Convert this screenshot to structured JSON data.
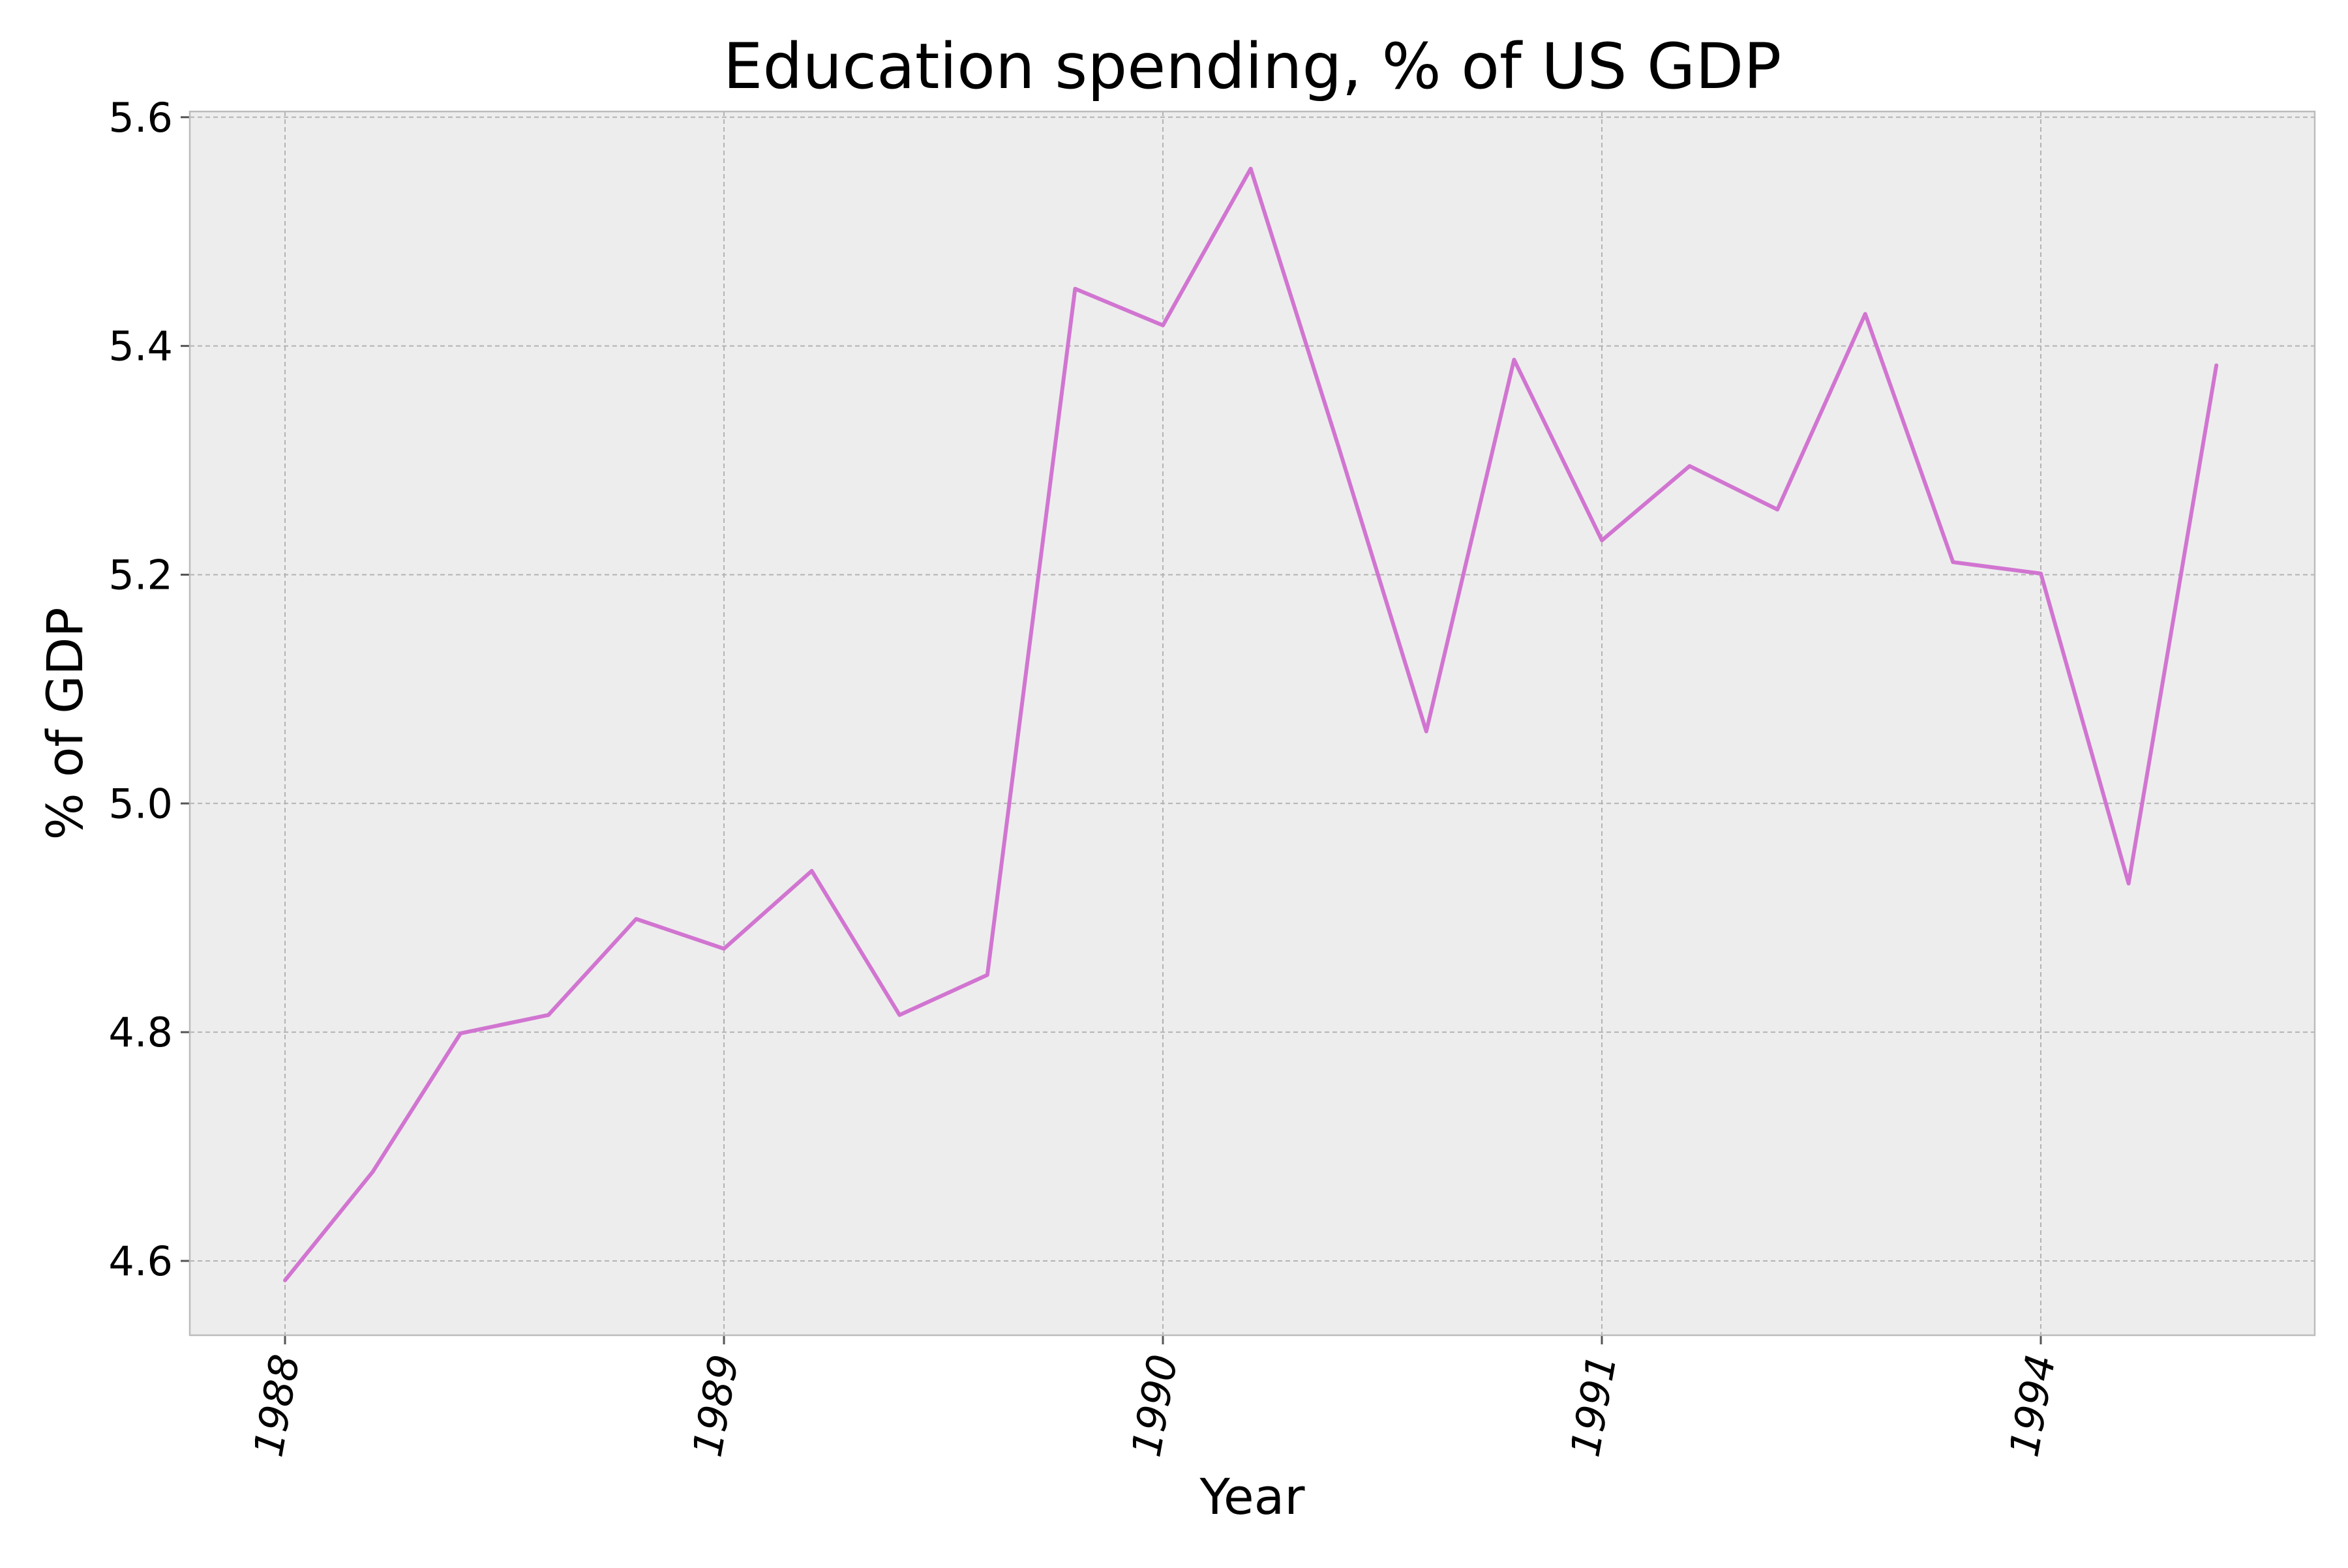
{
  "chart_data": {
    "type": "line",
    "title": "Education spending, % of US GDP",
    "xlabel": "Year",
    "ylabel": "% of GDP",
    "x_ticks": [
      "1988",
      "1989",
      "1990",
      "1991",
      "1994"
    ],
    "y_ticks": [
      "4.6",
      "4.8",
      "5.0",
      "5.2",
      "5.4",
      "5.6"
    ],
    "ylim": [
      4.535,
      5.605
    ],
    "grid": true,
    "background": "#ededed",
    "line_color": "#d175d1",
    "series": [
      {
        "values": [
          4.583,
          4.678,
          4.799,
          4.815,
          4.899,
          4.873,
          4.941,
          4.815,
          4.85,
          5.45,
          5.418,
          5.555,
          5.312,
          5.063,
          5.388,
          5.23,
          5.295,
          5.257,
          5.428,
          5.211,
          5.201,
          4.93,
          5.383
        ]
      }
    ]
  }
}
